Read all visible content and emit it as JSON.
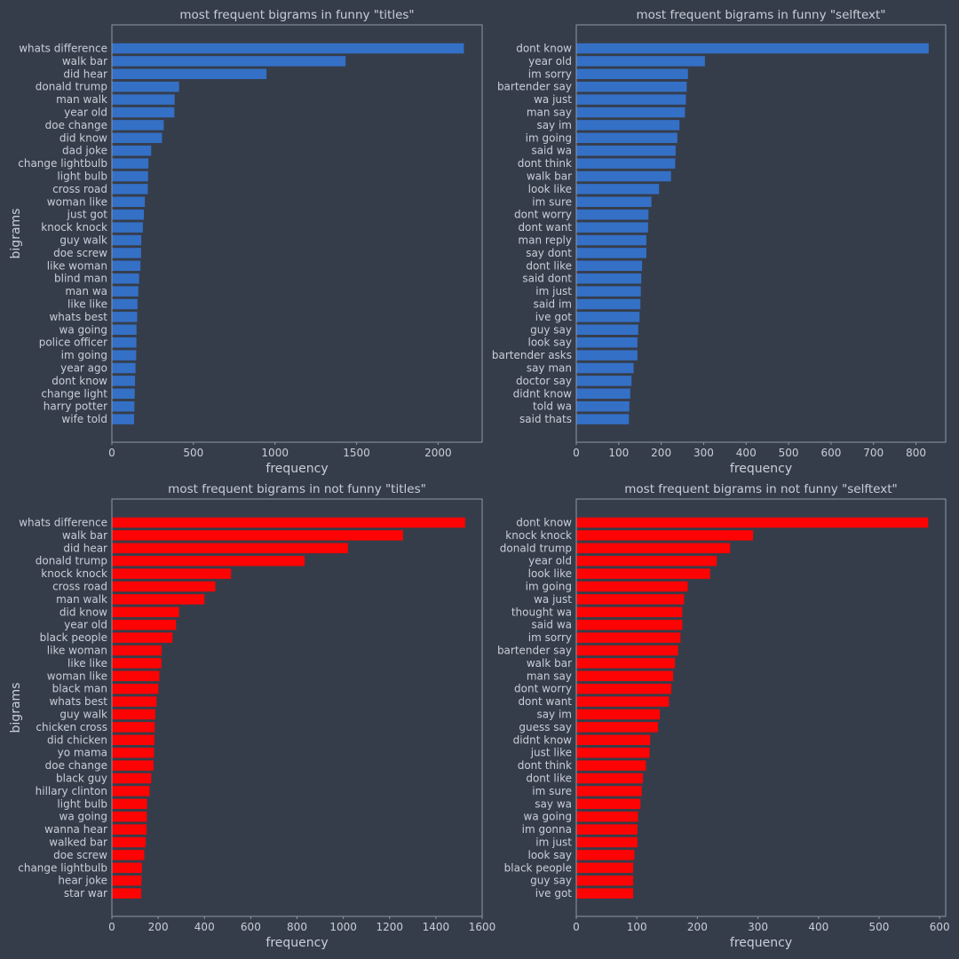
{
  "figure": {
    "background": "#363d4a",
    "text_color": "#c9ced8",
    "axis_color": "#8e96a8"
  },
  "chart_data": [
    {
      "type": "bar",
      "orientation": "horizontal",
      "title": "most frequent bigrams in funny \"titles\"",
      "xlabel": "frequency",
      "ylabel": "bigrams",
      "xlim": [
        0,
        2270
      ],
      "xticks": [
        0,
        500,
        1000,
        1500,
        2000
      ],
      "grid": false,
      "color": "#3470c6",
      "categories": [
        "whats difference",
        "walk bar",
        "did hear",
        "donald trump",
        "man walk",
        "year old",
        "doe change",
        "did know",
        "dad joke",
        "change lightbulb",
        "light bulb",
        "cross road",
        "woman like",
        "just got",
        "knock knock",
        "guy walk",
        "doe screw",
        "like woman",
        "blind man",
        "man wa",
        "like like",
        "whats best",
        "wa going",
        "police officer",
        "im going",
        "year ago",
        "dont know",
        "change light",
        "harry potter",
        "wife told"
      ],
      "values": [
        2158,
        1433,
        948,
        412,
        385,
        383,
        318,
        307,
        241,
        224,
        222,
        220,
        202,
        196,
        190,
        180,
        179,
        175,
        167,
        162,
        157,
        155,
        151,
        150,
        149,
        145,
        142,
        140,
        138,
        136
      ]
    },
    {
      "type": "bar",
      "orientation": "horizontal",
      "title": "most frequent bigrams in funny \"selftext\"",
      "xlabel": "frequency",
      "ylabel": "",
      "xlim": [
        0,
        870
      ],
      "xticks": [
        0,
        100,
        200,
        300,
        400,
        500,
        600,
        700,
        800
      ],
      "grid": false,
      "color": "#3470c6",
      "categories": [
        "dont know",
        "year old",
        "im sorry",
        "bartender say",
        "wa just",
        "man say",
        "say im",
        "im going",
        "said wa",
        "dont think",
        "walk bar",
        "look like",
        "im sure",
        "dont worry",
        "dont want",
        "man reply",
        "say dont",
        "dont like",
        "said dont",
        "im just",
        "said im",
        "ive got",
        "guy say",
        "look say",
        "bartender asks",
        "say man",
        "doctor say",
        "didnt know",
        "told wa",
        "said thats"
      ],
      "values": [
        830,
        303,
        263,
        260,
        258,
        256,
        243,
        238,
        234,
        233,
        223,
        195,
        177,
        170,
        169,
        165,
        165,
        155,
        153,
        152,
        151,
        149,
        146,
        144,
        144,
        135,
        130,
        127,
        125,
        124
      ]
    },
    {
      "type": "bar",
      "orientation": "horizontal",
      "title": "most frequent bigrams in not funny \"titles\"",
      "xlabel": "frequency",
      "ylabel": "bigrams",
      "xlim": [
        0,
        1600
      ],
      "xticks": [
        0,
        200,
        400,
        600,
        800,
        1000,
        1200,
        1400,
        1600
      ],
      "grid": false,
      "color": "#fe0303",
      "categories": [
        "whats difference",
        "walk bar",
        "did hear",
        "donald trump",
        "knock knock",
        "cross road",
        "man walk",
        "did know",
        "year old",
        "black people",
        "like woman",
        "like like",
        "woman like",
        "black man",
        "whats best",
        "guy walk",
        "chicken cross",
        "did chicken",
        "yo mama",
        "doe change",
        "black guy",
        "hillary clinton",
        "light bulb",
        "wa going",
        "wanna hear",
        "walked bar",
        "doe screw",
        "change lightbulb",
        "hear joke",
        "star war"
      ],
      "values": [
        1527,
        1258,
        1020,
        833,
        515,
        447,
        400,
        290,
        277,
        262,
        215,
        214,
        205,
        201,
        193,
        188,
        185,
        184,
        182,
        180,
        170,
        163,
        152,
        151,
        150,
        146,
        140,
        130,
        128,
        127
      ]
    },
    {
      "type": "bar",
      "orientation": "horizontal",
      "title": "most frequent bigrams in not funny \"selftext\"",
      "xlabel": "frequency",
      "ylabel": "",
      "xlim": [
        0,
        610
      ],
      "xticks": [
        0,
        100,
        200,
        300,
        400,
        500,
        600
      ],
      "grid": false,
      "color": "#fe0303",
      "categories": [
        "dont know",
        "knock knock",
        "donald trump",
        "year old",
        "look like",
        "im going",
        "wa just",
        "thought wa",
        "said wa",
        "im sorry",
        "bartender say",
        "walk bar",
        "man say",
        "dont worry",
        "dont want",
        "say im",
        "guess say",
        "didnt know",
        "just like",
        "dont think",
        "dont like",
        "im sure",
        "say wa",
        "wa going",
        "im gonna",
        "im just",
        "look say",
        "black people",
        "guy say",
        "ive got"
      ],
      "values": [
        581,
        292,
        254,
        232,
        221,
        184,
        178,
        175,
        175,
        172,
        168,
        163,
        160,
        157,
        153,
        138,
        135,
        122,
        121,
        115,
        110,
        108,
        106,
        102,
        101,
        101,
        96,
        94,
        94,
        94
      ]
    }
  ]
}
